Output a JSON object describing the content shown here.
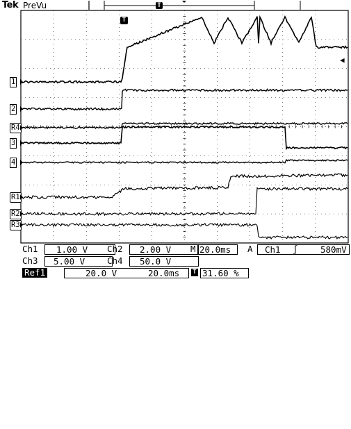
{
  "brand": "Tek",
  "mode": "PreVu",
  "colors": {
    "trace": "#000000",
    "background": "#ffffff",
    "grid": "#000000"
  },
  "markers": {
    "ch1": "1",
    "ch2": "2",
    "ch3": "3",
    "ch4": "4",
    "r4": "R4",
    "r1": "R1",
    "r2": "R2",
    "r3": "R3",
    "trigger": "T",
    "trigger_level": "◀"
  },
  "readout": {
    "ch1_label": "Ch1",
    "ch1_scale": "1.00 V",
    "ch2_label": "Ch2",
    "ch2_scale": "2.00 V",
    "ch3_label": "Ch3",
    "ch3_scale": "5.00 V",
    "ch4_label": "Ch4",
    "ch4_scale": "50.0 V",
    "ref1_label": "Ref1",
    "ref1_scale": "20.0 V",
    "ref1_time": "20.0ms",
    "timebase_prefix": "M",
    "timebase": "20.0ms",
    "acq_label": "A",
    "trig_source": "Ch1",
    "trig_slope": "∫",
    "trig_level": "580mV",
    "trig_position": "31.60 %"
  }
}
